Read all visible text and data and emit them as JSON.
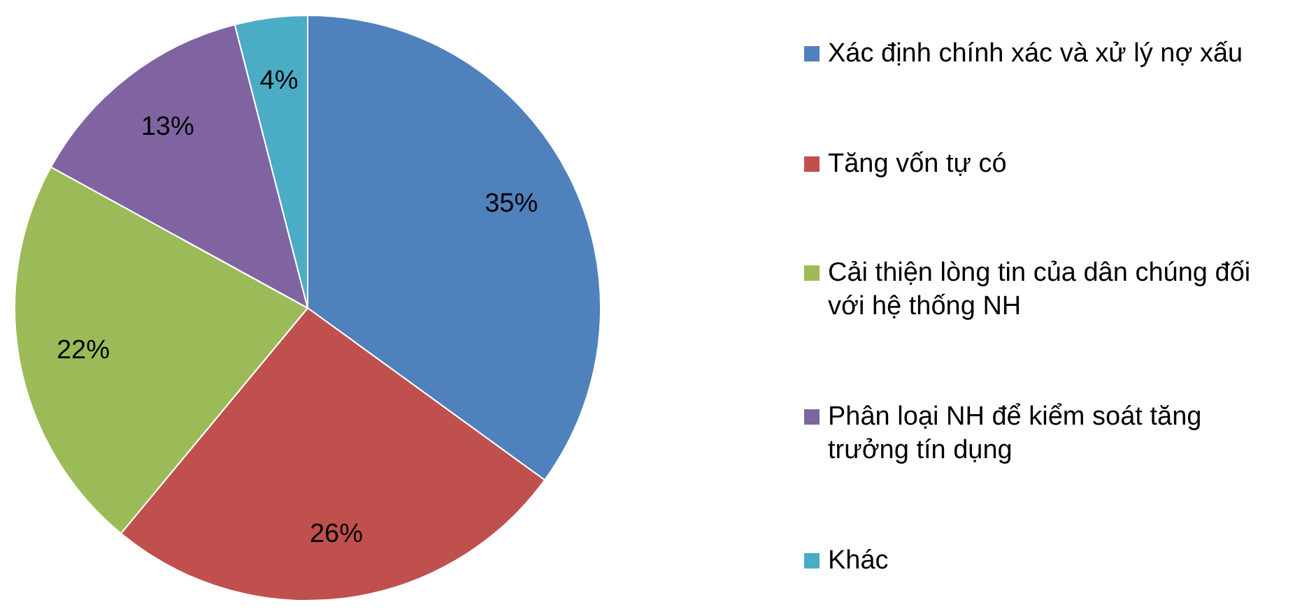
{
  "chart_data": {
    "type": "pie",
    "categories": [
      "Xác định chính xác và xử lý nợ xấu",
      "Tăng vốn tự có",
      "Cải thiện lòng tin của dân chúng đối với hệ thống NH",
      "Phân loại NH để kiểm soát tăng trưởng tín dụng",
      "Khác"
    ],
    "values": [
      35,
      26,
      22,
      13,
      4
    ],
    "colors": [
      "#4f81bd",
      "#c0504d",
      "#9bbb59",
      "#8064a2",
      "#4bacc6"
    ],
    "value_labels": [
      "35%",
      "26%",
      "22%",
      "13%",
      "4%"
    ],
    "legend": "right"
  }
}
